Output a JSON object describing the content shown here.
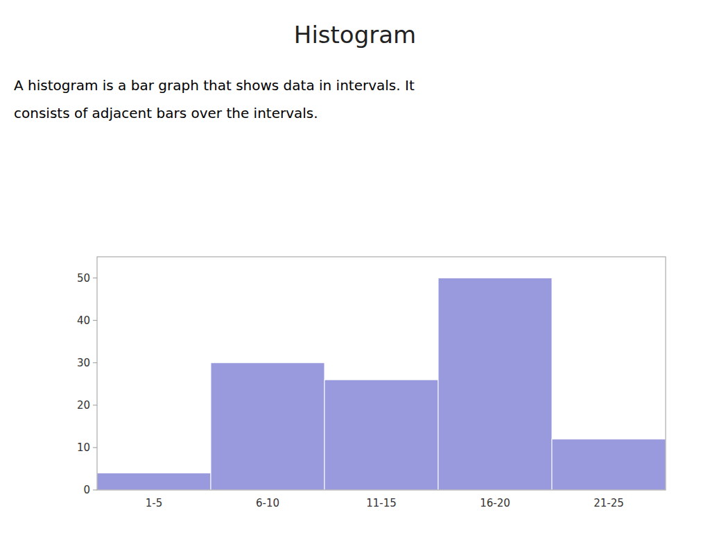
{
  "chart_data": {
    "type": "bar",
    "title": "Histogram",
    "subtitle": [
      "A histogram is a bar graph that shows data in intervals. It",
      "consists of adjacent bars over the intervals."
    ],
    "categories": [
      "1-5",
      "6-10",
      "11-15",
      "16-20",
      "21-25"
    ],
    "values": [
      4,
      30,
      26,
      50,
      12
    ],
    "color": "#9999dd",
    "ylim": [
      0,
      55
    ],
    "yticks": [
      0,
      10,
      20,
      30,
      40,
      50
    ],
    "grid": false
  }
}
